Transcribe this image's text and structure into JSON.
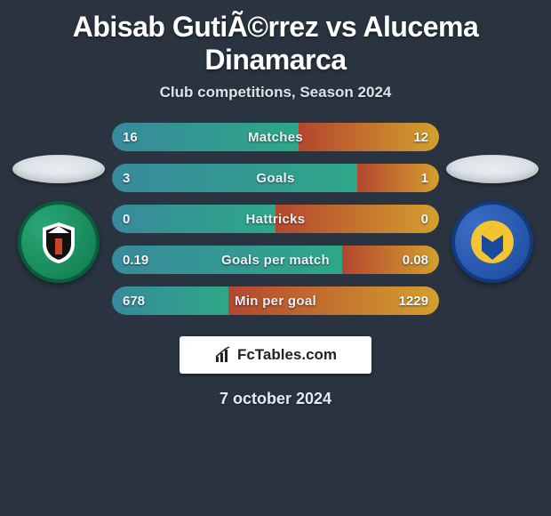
{
  "title": "Abisab GutiÃ©rrez vs Alucema Dinamarca",
  "subtitle": "Club competitions, Season 2024",
  "date": "7 october 2024",
  "branding": {
    "text": "FcTables.com"
  },
  "clubs": {
    "left": {
      "name": "deportes-temuco-logo",
      "bg": "#0f7a4e",
      "border": "#0a5d3a"
    },
    "right": {
      "name": "ac-barnechea-logo",
      "bg": "#1a4a9c",
      "border": "#123a7f"
    }
  },
  "bars": {
    "left_start": "#388a9c",
    "left_end": "#2ea788",
    "right_start": "#b4462f",
    "right_end": "#d4a02e",
    "track": "#1f2832"
  },
  "stats": [
    {
      "label": "Matches",
      "left_val": "16",
      "right_val": "12",
      "left_num": 16,
      "right_num": 12
    },
    {
      "label": "Goals",
      "left_val": "3",
      "right_val": "1",
      "left_num": 3,
      "right_num": 1
    },
    {
      "label": "Hattricks",
      "left_val": "0",
      "right_val": "0",
      "left_num": 0,
      "right_num": 0
    },
    {
      "label": "Goals per match",
      "left_val": "0.19",
      "right_val": "0.08",
      "left_num": 0.19,
      "right_num": 0.08
    },
    {
      "label": "Min per goal",
      "left_val": "678",
      "right_val": "1229",
      "left_num": 678,
      "right_num": 1229
    }
  ]
}
